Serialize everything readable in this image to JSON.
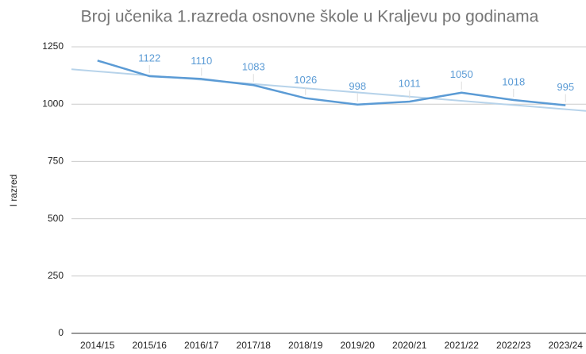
{
  "chart_data": {
    "type": "line",
    "title": "Broj učenika 1.razreda osnovne škole u Kraljevu po godinama",
    "y_label": "I razred",
    "categories": [
      "2014/15",
      "2015/16",
      "2016/17",
      "2017/18",
      "2018/19",
      "2019/20",
      "2020/21",
      "2021/22",
      "2022/23",
      "2023/24"
    ],
    "series": [
      {
        "name": "I razred",
        "color": "#5b9bd5",
        "values": [
          1190,
          1122,
          1110,
          1083,
          1026,
          998,
          1011,
          1050,
          1018,
          995
        ],
        "value_labels": [
          null,
          "1122",
          "1110",
          "1083",
          "1026",
          "998",
          "1011",
          "1050",
          "1018",
          "995"
        ]
      }
    ],
    "trendline": true,
    "trendline_color": "#b7d3ea",
    "ylim": [
      0,
      1250
    ],
    "yticks": [
      0,
      250,
      500,
      750,
      1000,
      1250
    ],
    "grid": true
  }
}
